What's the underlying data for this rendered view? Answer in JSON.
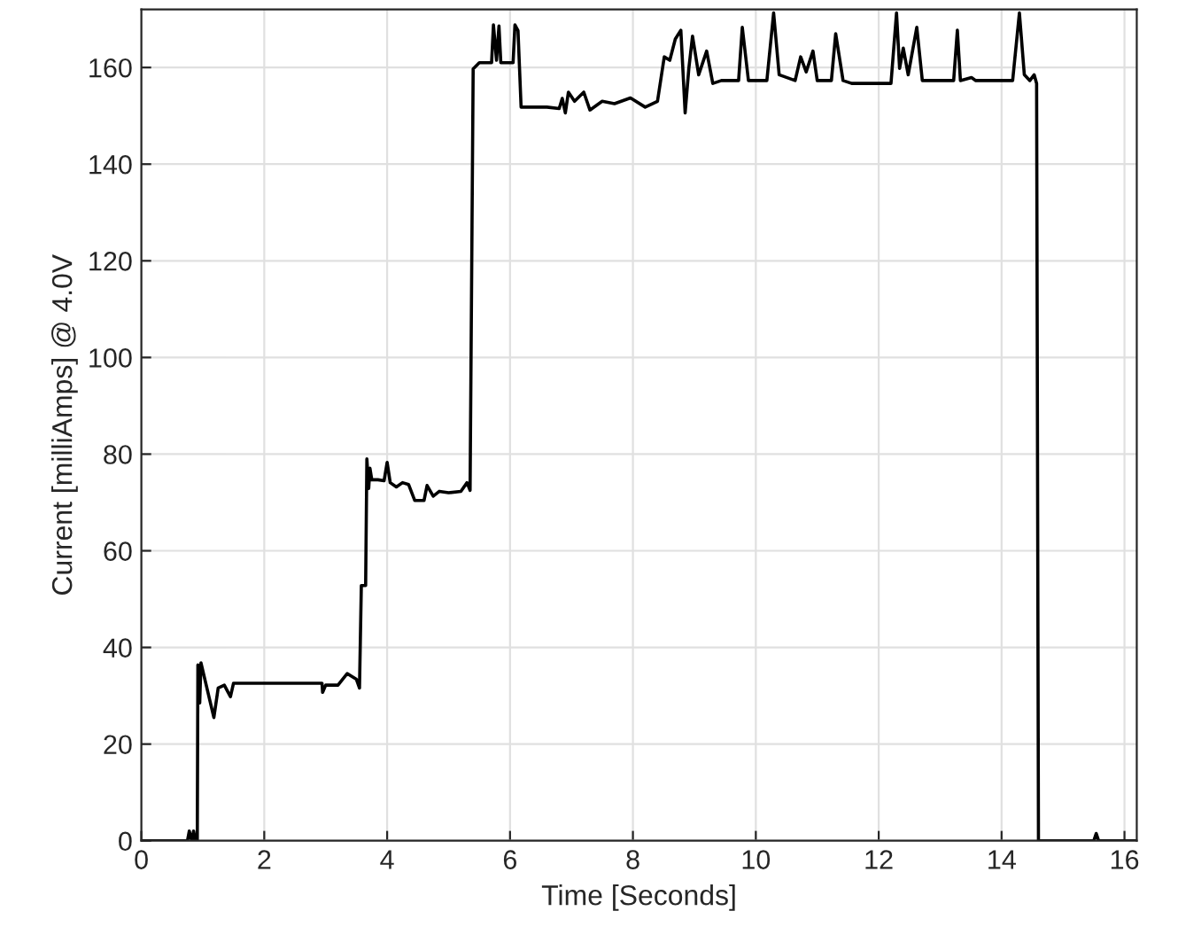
{
  "chart_data": {
    "type": "line",
    "xlabel": "Time [Seconds]",
    "ylabel": "Current [milliAmps] @ 4.0V",
    "xlim": [
      0,
      16.2
    ],
    "ylim": [
      0,
      172
    ],
    "xticks": [
      0,
      2,
      4,
      6,
      8,
      10,
      12,
      14,
      16
    ],
    "yticks": [
      0,
      20,
      40,
      60,
      80,
      100,
      120,
      140,
      160
    ],
    "grid": true,
    "marker": "none",
    "line_style": "solid",
    "series": [
      {
        "color": "#000000",
        "x": [
          0,
          0.75,
          0.78,
          0.82,
          0.85,
          0.88,
          0.91,
          0.92,
          0.95,
          0.97,
          1.0,
          1.18,
          1.25,
          1.35,
          1.45,
          1.5,
          2.94,
          2.95,
          3.0,
          3.2,
          3.35,
          3.5,
          3.55,
          3.58,
          3.65,
          3.67,
          3.7,
          3.72,
          3.75,
          3.85,
          3.95,
          4.0,
          4.05,
          4.15,
          4.25,
          4.35,
          4.45,
          4.6,
          4.65,
          4.75,
          4.85,
          5.0,
          5.2,
          5.3,
          5.35,
          5.4,
          5.5,
          5.7,
          5.73,
          5.78,
          5.82,
          5.85,
          6.05,
          6.08,
          6.13,
          6.18,
          6.6,
          6.8,
          6.85,
          6.9,
          6.95,
          7.05,
          7.2,
          7.3,
          7.5,
          7.7,
          7.96,
          8.2,
          8.4,
          8.51,
          8.6,
          8.69,
          8.78,
          8.85,
          8.91,
          8.97,
          9.07,
          9.2,
          9.3,
          9.44,
          9.72,
          9.78,
          9.88,
          10.18,
          10.29,
          10.38,
          10.64,
          10.73,
          10.82,
          10.93,
          11.0,
          11.23,
          11.3,
          11.42,
          11.56,
          12.2,
          12.29,
          12.34,
          12.4,
          12.48,
          12.62,
          12.71,
          13.22,
          13.28,
          13.33,
          13.51,
          13.58,
          14.18,
          14.29,
          14.37,
          14.46,
          14.53,
          14.57,
          14.6,
          15.5,
          15.54,
          15.58,
          16.2
        ],
        "values": [
          0,
          0,
          2,
          0,
          2,
          0,
          0,
          36.4,
          28.5,
          36.8,
          35.2,
          25.5,
          31.6,
          32.2,
          29.8,
          32.6,
          32.6,
          30.7,
          32.2,
          32.2,
          34.6,
          33.4,
          31.6,
          52.8,
          52.8,
          79,
          72.9,
          77.1,
          74.7,
          74.7,
          74.5,
          78.3,
          74.1,
          73.2,
          74.1,
          73.7,
          70.4,
          70.4,
          73.5,
          71.3,
          72.3,
          72,
          72.3,
          74.1,
          72.5,
          159.7,
          161,
          161,
          168.8,
          161.5,
          168.6,
          161,
          161,
          168.8,
          167.6,
          151.8,
          151.8,
          151.5,
          153.6,
          150.6,
          154.9,
          153,
          154.9,
          151.2,
          153,
          152.5,
          153.7,
          151.8,
          153,
          162.2,
          161.5,
          165.9,
          167.7,
          150.6,
          159.8,
          166.5,
          158.5,
          163.4,
          156.7,
          157.3,
          157.3,
          168.3,
          157.3,
          157.3,
          171.3,
          158.5,
          157.3,
          162.2,
          159.1,
          163.4,
          157.3,
          157.3,
          167,
          157.3,
          156.7,
          156.7,
          171.3,
          159.8,
          164,
          158.5,
          168.3,
          157.3,
          157.3,
          167.7,
          157.3,
          157.9,
          157.3,
          157.3,
          171.3,
          158.5,
          157.3,
          158.5,
          156.7,
          0,
          0,
          1.5,
          0,
          0
        ]
      }
    ]
  }
}
